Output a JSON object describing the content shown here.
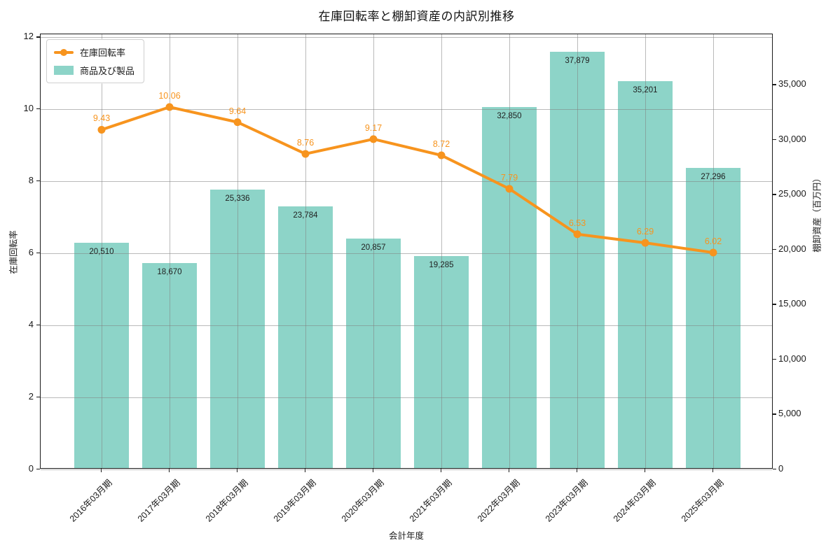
{
  "title": "在庫回転率と棚卸資産の内訳別推移",
  "chart_data": {
    "type": "combo",
    "categories": [
      "2016年03月期",
      "2017年03月期",
      "2018年03月期",
      "2019年03月期",
      "2020年03月期",
      "2021年03月期",
      "2022年03月期",
      "2023年03月期",
      "2024年03月期",
      "2025年03月期"
    ],
    "series": [
      {
        "name": "在庫回転率",
        "type": "line",
        "axis": "left",
        "color": "#f7941e",
        "values": [
          9.43,
          10.06,
          9.64,
          8.76,
          9.17,
          8.72,
          7.79,
          6.53,
          6.29,
          6.02
        ]
      },
      {
        "name": "商品及び製品",
        "type": "bar",
        "axis": "right",
        "color": "#8dd4c8",
        "values": [
          20510,
          18670,
          25336,
          23784,
          20857,
          19285,
          32850,
          37879,
          35201,
          27296
        ]
      }
    ],
    "title": "在庫回転率と棚卸資産の内訳別推移",
    "xlabel": "会計年度",
    "ylabel_left": "在庫回転率",
    "ylabel_right": "棚卸資産（百万円）",
    "left_axis": {
      "min": 0,
      "max": 12.08,
      "ticks": [
        0,
        2,
        4,
        6,
        8,
        10,
        12
      ]
    },
    "right_axis": {
      "min": 0,
      "max": 39590,
      "ticks": [
        0,
        5000,
        10000,
        15000,
        20000,
        25000,
        30000,
        35000
      ]
    },
    "grid": true,
    "legend_position": "upper-left",
    "grid_color": "#828282",
    "spine_color": "#1a1a1a"
  }
}
